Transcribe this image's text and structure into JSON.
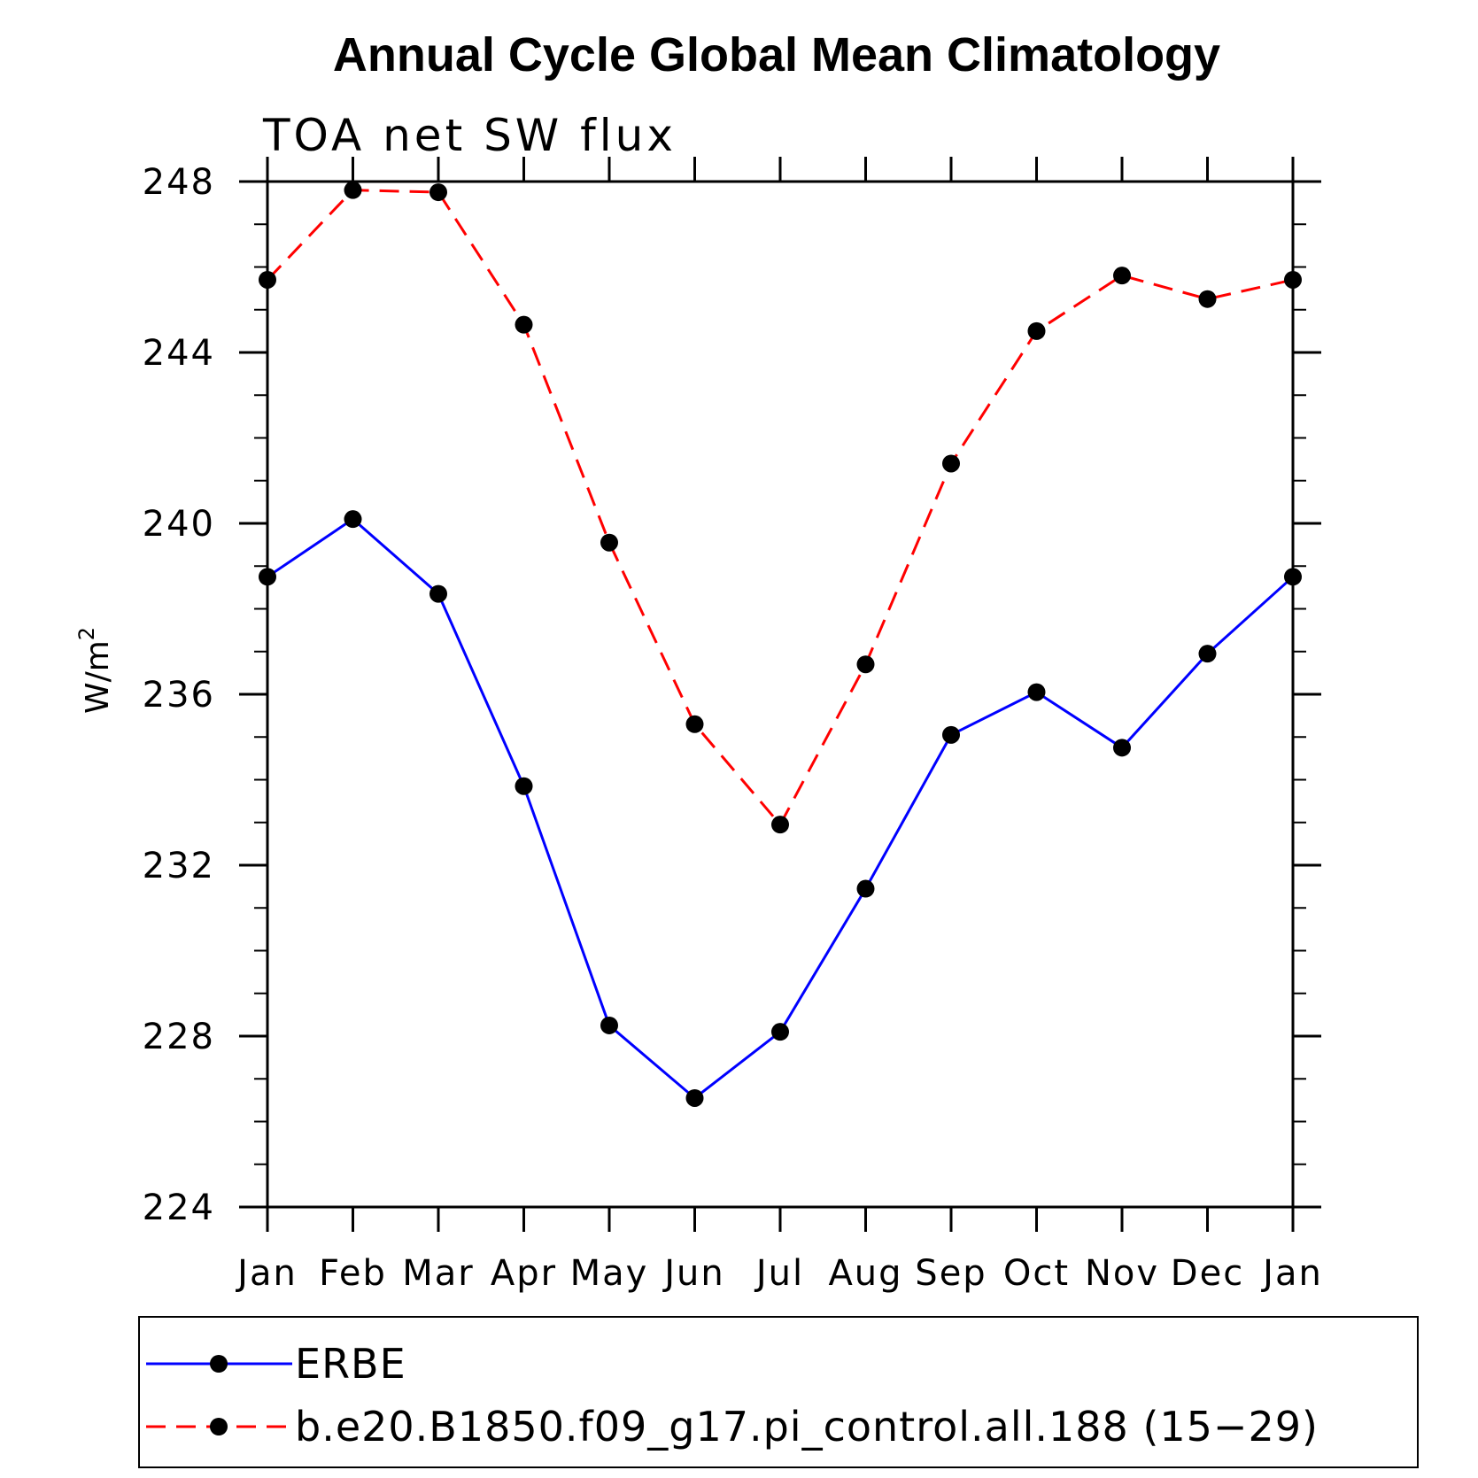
{
  "chart_data": {
    "type": "line",
    "title": "Annual Cycle Global Mean Climatology",
    "subtitle": "TOA net SW flux",
    "ylabel": "W/m",
    "ylabel_superscript": "2",
    "xlabel": "",
    "x": [
      "Jan",
      "Feb",
      "Mar",
      "Apr",
      "May",
      "Jun",
      "Jul",
      "Aug",
      "Sep",
      "Oct",
      "Nov",
      "Dec",
      "Jan"
    ],
    "ylim": [
      224,
      248
    ],
    "yticks": [
      "224",
      "228",
      "232",
      "236",
      "240",
      "244",
      "248"
    ],
    "grid": false,
    "legend_position": "bottom",
    "series": [
      {
        "name": "ERBE",
        "color": "#0000ff",
        "style": "solid",
        "marker": "filled-circle",
        "values": [
          238.75,
          240.1,
          238.35,
          233.85,
          228.25,
          226.55,
          228.1,
          231.45,
          235.05,
          236.05,
          234.75,
          236.95,
          238.75
        ]
      },
      {
        "name": "b.e20.B1850.f09_g17.pi_control.all.188 (15−29)",
        "color": "#ff0000",
        "style": "dashed",
        "marker": "filled-circle",
        "values": [
          245.7,
          247.8,
          247.75,
          244.65,
          239.55,
          235.3,
          232.95,
          236.7,
          241.4,
          244.5,
          245.8,
          245.25,
          245.7
        ]
      }
    ]
  }
}
